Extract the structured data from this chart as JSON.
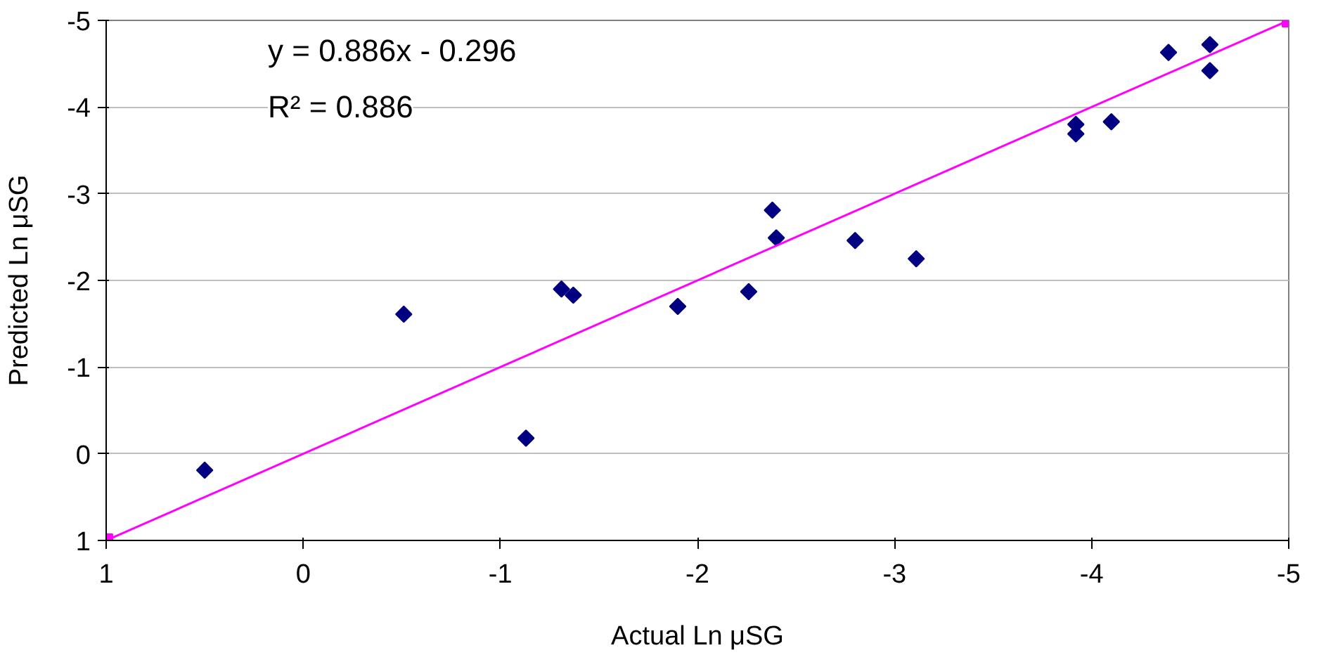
{
  "chart_data": {
    "type": "scatter",
    "xlabel": "Actual Ln μSG",
    "ylabel": "Predicted Ln μSG",
    "xlim": [
      1,
      -5
    ],
    "ylim": [
      1,
      -5
    ],
    "xticks": [
      1,
      0,
      -1,
      -2,
      -3,
      -4,
      -5
    ],
    "yticks": [
      1,
      0,
      -1,
      -2,
      -3,
      -4,
      -5
    ],
    "grid": "y",
    "annotations": [
      "y = 0.886x - 0.296",
      "R² = 0.886"
    ],
    "series": [
      {
        "color": "#000080",
        "marker": "diamond",
        "x": [
          0.5,
          -0.51,
          -1.13,
          -1.31,
          -1.37,
          -1.9,
          -2.26,
          -2.38,
          -2.4,
          -2.8,
          -3.11,
          -3.92,
          -3.92,
          -4.1,
          -4.39,
          -4.6,
          -4.6
        ],
        "values": [
          0.19,
          -1.61,
          -0.18,
          -1.9,
          -1.83,
          -1.7,
          -1.87,
          -2.81,
          -2.49,
          -2.46,
          -2.25,
          -3.8,
          -3.69,
          -3.83,
          -4.63,
          -4.72,
          -4.42
        ]
      },
      {
        "type": "line",
        "color": "#ff00ff",
        "marker": "square",
        "line_style": "solid",
        "x": [
          1,
          -5
        ],
        "values": [
          1,
          -5
        ]
      }
    ]
  }
}
